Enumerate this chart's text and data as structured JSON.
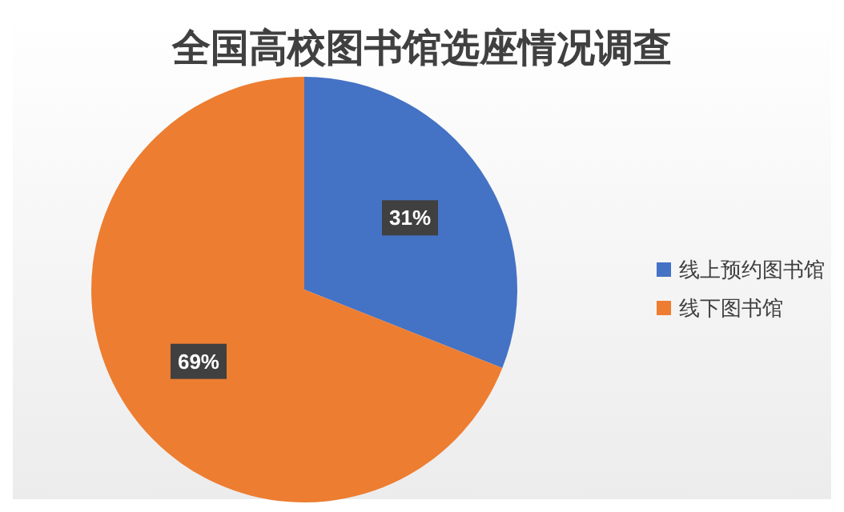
{
  "chart_data": {
    "type": "pie",
    "title": "全国高校图书馆选座情况调查",
    "categories": [
      "线上预约图书馆",
      "线下图书馆"
    ],
    "values": [
      31,
      69
    ],
    "colors": [
      "#4472c4",
      "#ed7d31"
    ],
    "value_labels": [
      "31%",
      "69%"
    ],
    "legend": "right"
  }
}
